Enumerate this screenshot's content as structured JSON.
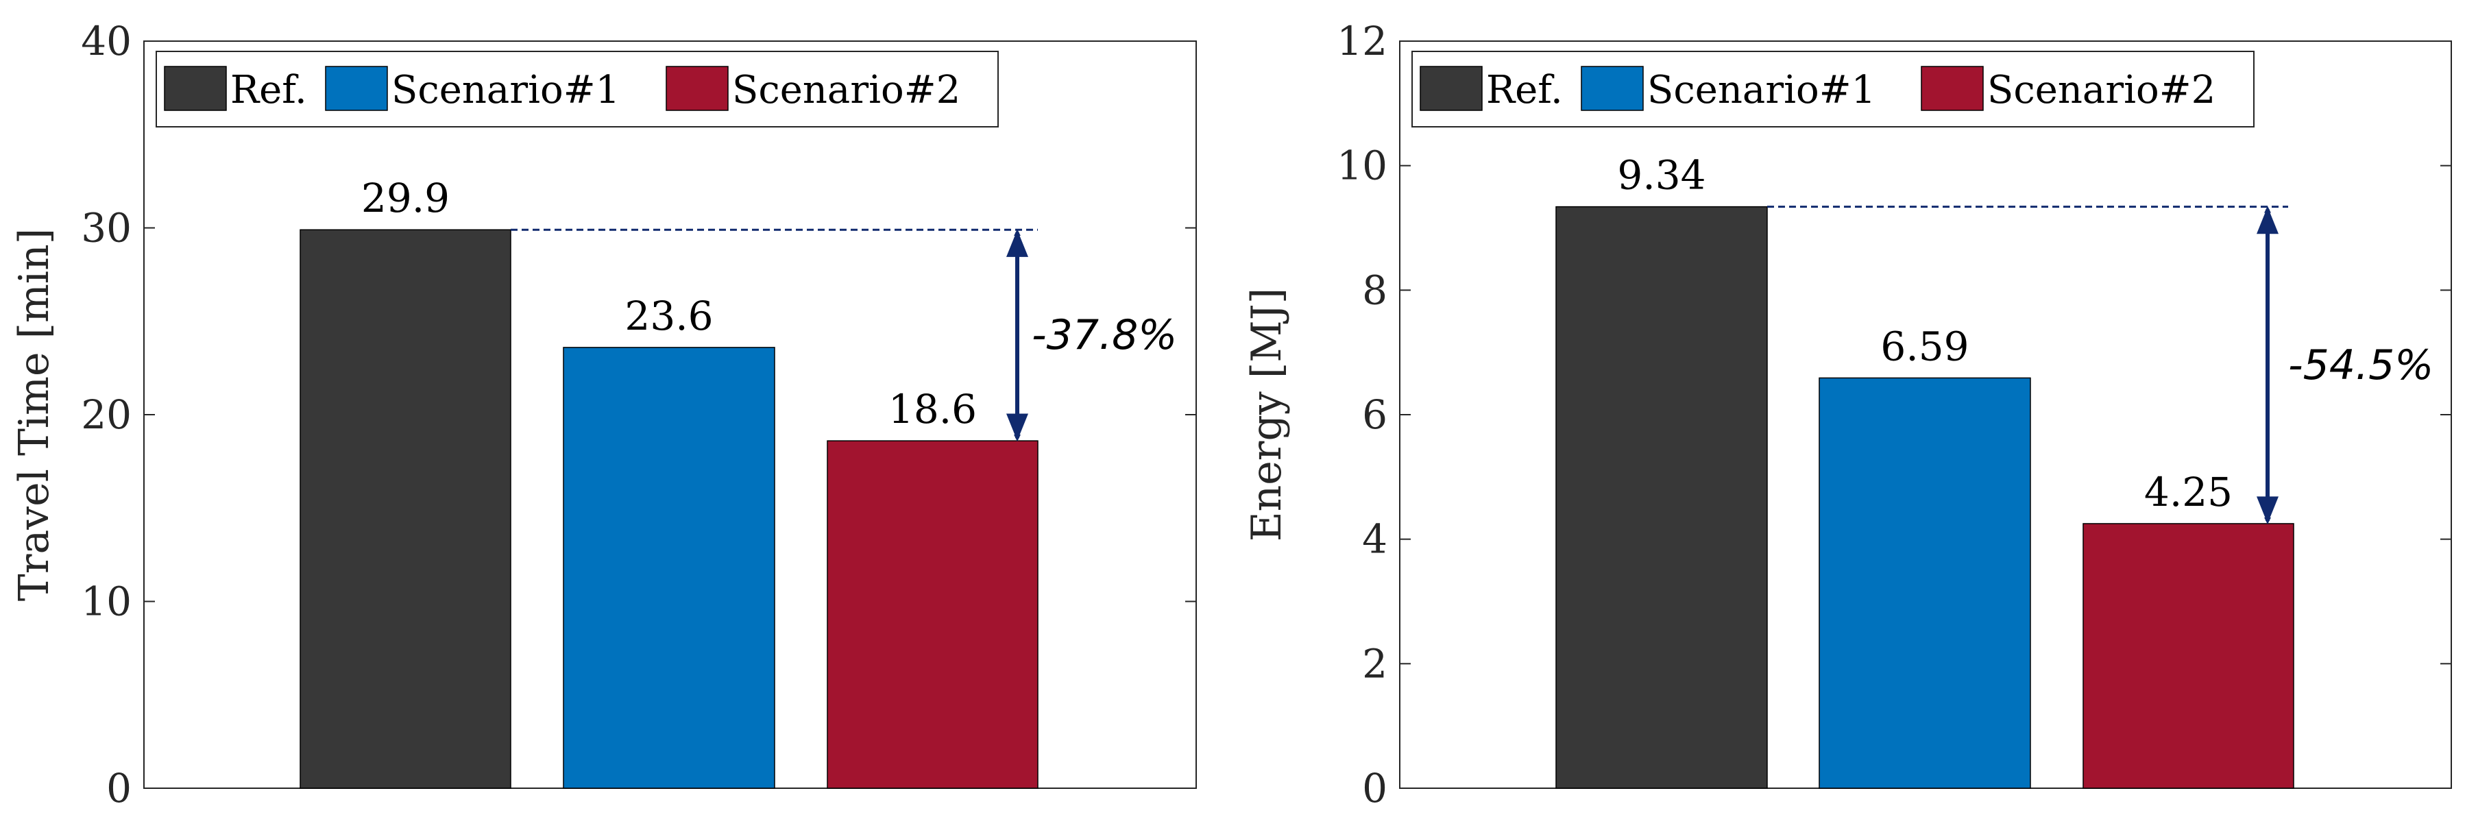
{
  "chart_data": [
    {
      "type": "bar",
      "categories": [
        "Ref.",
        "Scenario#1",
        "Scenario#2"
      ],
      "series": [
        {
          "name": "Ref.",
          "value": 29.9,
          "label": "29.9"
        },
        {
          "name": "Scenario#1",
          "value": 23.6,
          "label": "23.6"
        },
        {
          "name": "Scenario#2",
          "value": 18.6,
          "label": "18.6"
        }
      ],
      "xlabel": "",
      "ylabel": "Travel Time [min]",
      "ylim": [
        0,
        40
      ],
      "yticks": [
        0,
        10,
        20,
        30,
        40
      ],
      "legend": "top-left",
      "grid": false,
      "annotation": {
        "text": "-37.8%",
        "from": 29.9,
        "to": 18.6
      }
    },
    {
      "type": "bar",
      "categories": [
        "Ref.",
        "Scenario#1",
        "Scenario#2"
      ],
      "series": [
        {
          "name": "Ref.",
          "value": 9.34,
          "label": "9.34"
        },
        {
          "name": "Scenario#1",
          "value": 6.59,
          "label": "6.59"
        },
        {
          "name": "Scenario#2",
          "value": 4.25,
          "label": "4.25"
        }
      ],
      "xlabel": "",
      "ylabel": "Energy [MJ]",
      "ylim": [
        0,
        12
      ],
      "yticks": [
        0,
        2,
        4,
        6,
        8,
        10,
        12
      ],
      "legend": "top-left",
      "grid": false,
      "annotation": {
        "text": "-54.5%",
        "from": 9.34,
        "to": 4.25
      }
    }
  ],
  "colors": {
    "Ref.": "#383838",
    "Scenario#1": "#0072BD",
    "Scenario#2": "#A2142F",
    "arrow": "#102A6E",
    "axis": "#262626"
  }
}
